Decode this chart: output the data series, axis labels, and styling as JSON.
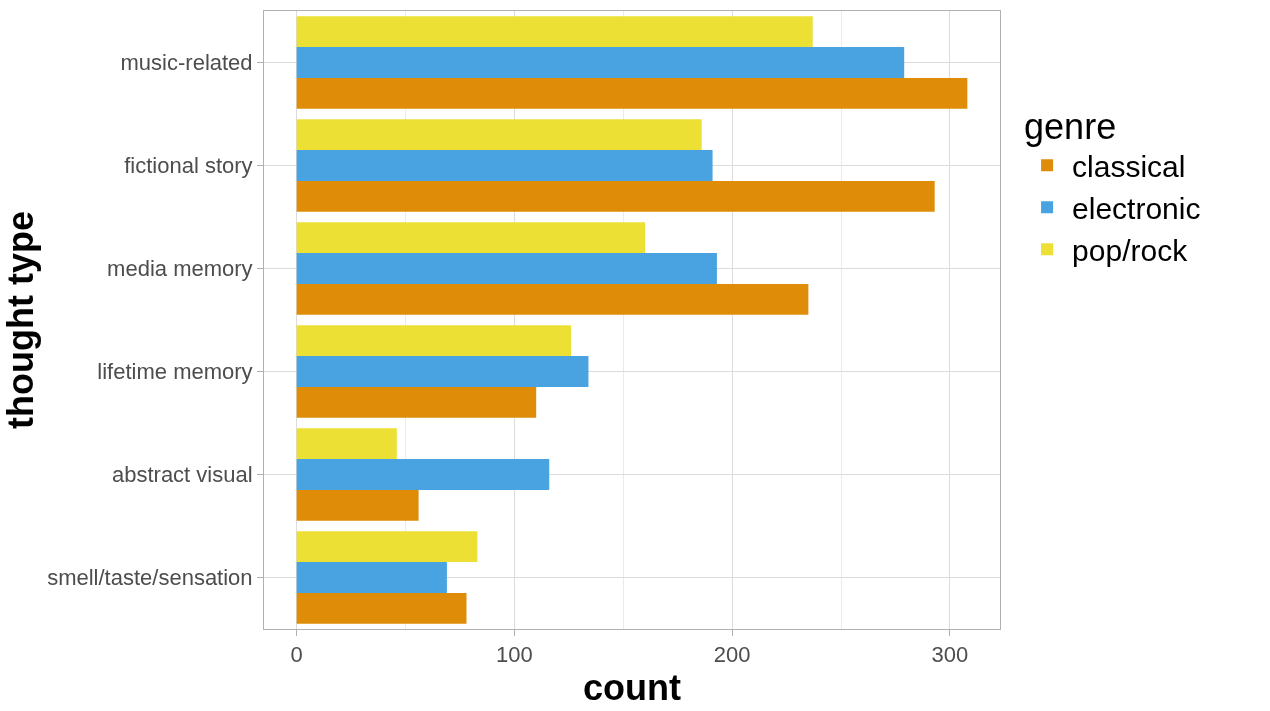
{
  "chart_data": {
    "type": "bar",
    "orientation": "horizontal",
    "xlabel": "count",
    "ylabel": "thought type",
    "legend_title": "genre",
    "categories": [
      "music-related",
      "fictional story",
      "media memory",
      "lifetime memory",
      "abstract visual",
      "smell/taste/sensation"
    ],
    "series": [
      {
        "name": "classical",
        "color": "#df8c09",
        "values": [
          308,
          293,
          235,
          110,
          56,
          78
        ]
      },
      {
        "name": "electronic",
        "color": "#48a3e0",
        "values": [
          279,
          191,
          193,
          134,
          116,
          69
        ]
      },
      {
        "name": "pop/rock",
        "color": "#ebe033",
        "values": [
          237,
          186,
          160,
          126,
          46,
          83
        ]
      }
    ],
    "xlim": [
      -15,
      323
    ],
    "xticks": [
      0,
      100,
      200,
      300
    ],
    "grid": true,
    "legend": "right"
  }
}
